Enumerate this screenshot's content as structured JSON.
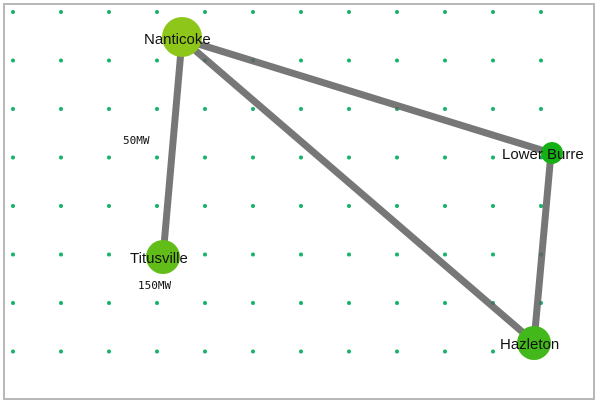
{
  "diagram": {
    "colors": {
      "grid_dot": "#19b26b",
      "edge": "#5f5f5f",
      "node_large": "#8ec61a",
      "node_medium": "#4cb81a",
      "node_small": "#14b014",
      "border": "#b8b8b8"
    },
    "nodes": [
      {
        "id": "nanticoke",
        "label": "Nanticoke",
        "sub": ""
      },
      {
        "id": "lower-burre",
        "label": "Lower Burre",
        "sub": ""
      },
      {
        "id": "titusville",
        "label": "Titusville",
        "sub": "150MW"
      },
      {
        "id": "hazleton",
        "label": "Hazleton",
        "sub": ""
      }
    ],
    "edges": [
      {
        "from": "nanticoke",
        "to": "titusville",
        "label": "50MW"
      },
      {
        "from": "nanticoke",
        "to": "lower-burre",
        "label": ""
      },
      {
        "from": "nanticoke",
        "to": "hazleton",
        "label": ""
      },
      {
        "from": "lower-burre",
        "to": "hazleton",
        "label": ""
      }
    ]
  }
}
